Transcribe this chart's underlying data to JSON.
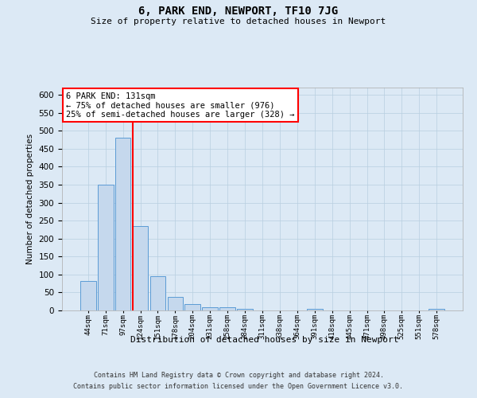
{
  "title": "6, PARK END, NEWPORT, TF10 7JG",
  "subtitle": "Size of property relative to detached houses in Newport",
  "xlabel": "Distribution of detached houses by size in Newport",
  "ylabel": "Number of detached properties",
  "footer_line1": "Contains HM Land Registry data © Crown copyright and database right 2024.",
  "footer_line2": "Contains public sector information licensed under the Open Government Licence v3.0.",
  "annotation_title": "6 PARK END: 131sqm",
  "annotation_line1": "← 75% of detached houses are smaller (976)",
  "annotation_line2": "25% of semi-detached houses are larger (328) →",
  "bar_labels": [
    "44sqm",
    "71sqm",
    "97sqm",
    "124sqm",
    "151sqm",
    "178sqm",
    "204sqm",
    "231sqm",
    "258sqm",
    "284sqm",
    "311sqm",
    "338sqm",
    "364sqm",
    "391sqm",
    "418sqm",
    "445sqm",
    "471sqm",
    "498sqm",
    "525sqm",
    "551sqm",
    "578sqm"
  ],
  "bar_values": [
    82,
    350,
    480,
    235,
    95,
    38,
    17,
    8,
    8,
    5,
    0,
    0,
    0,
    5,
    0,
    0,
    0,
    0,
    0,
    0,
    5
  ],
  "bar_color": "#c5d8ed",
  "bar_edge_color": "#5b9bd5",
  "background_color": "#dce9f5",
  "red_line_x": 2.55,
  "grid_color": "#b8cfe0",
  "ylim": [
    0,
    620
  ],
  "yticks": [
    0,
    50,
    100,
    150,
    200,
    250,
    300,
    350,
    400,
    450,
    500,
    550,
    600
  ]
}
